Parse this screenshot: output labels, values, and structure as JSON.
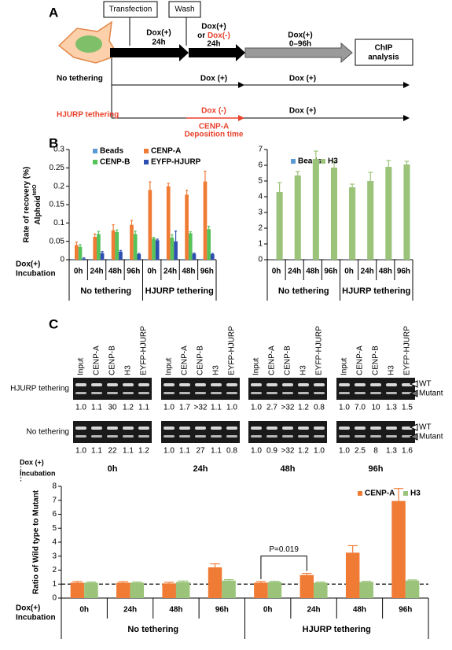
{
  "panel_labels": [
    "A",
    "B",
    "C"
  ],
  "panel_a": {
    "transfection": "Transfection",
    "wash": "Wash",
    "step1": [
      "Dox(+)",
      "24h"
    ],
    "step2": [
      "Dox(+)",
      "or ",
      "Dox(-)",
      "24h"
    ],
    "step3": [
      "Dox(+)",
      "0–96h"
    ],
    "chip": [
      "ChIP",
      "analysis"
    ],
    "no_tethering": {
      "label": "No tethering",
      "dox1": "Dox (+)",
      "dox2": "Dox (+)"
    },
    "hjurp_tethering": {
      "label": "HJURP tethering",
      "dox1": "Dox (-)",
      "dox2": "Dox (+)",
      "note": [
        "CENP-A",
        "Deposition time"
      ]
    }
  },
  "chart_data": [
    {
      "type": "bar",
      "y_label": "Rate of recovery (%)",
      "y_label_2": "Alphoid",
      "y_label_2_sup": "tetO",
      "ylim": [
        0,
        0.3
      ],
      "yticks": [
        0,
        0.05,
        0.1,
        0.15,
        0.2,
        0.25,
        0.3
      ],
      "categories": [
        "0h",
        "24h",
        "48h",
        "96h",
        "0h",
        "24h",
        "48h",
        "96h"
      ],
      "group_labels": [
        "No tethering",
        "HJURP tethering"
      ],
      "row_label": [
        "Dox(+)",
        "Incubation"
      ],
      "series": [
        {
          "name": "Beads",
          "color": "#5b9bd5",
          "values": [
            0.002,
            0.002,
            0.002,
            0.002,
            0.002,
            0.002,
            0.002,
            0.002
          ]
        },
        {
          "name": "CENP-A",
          "color": "#f07b35",
          "values": [
            0.04,
            0.062,
            0.08,
            0.095,
            0.19,
            0.2,
            0.177,
            0.213
          ],
          "errors": [
            0.008,
            0.008,
            0.015,
            0.012,
            0.022,
            0.008,
            0.012,
            0.028
          ]
        },
        {
          "name": "CENP-B",
          "color": "#55c25a",
          "values": [
            0.035,
            0.07,
            0.075,
            0.07,
            0.058,
            0.06,
            0.072,
            0.083
          ],
          "errors": [
            0.006,
            0.007,
            0.006,
            0.008,
            0.003,
            0.008,
            0.004,
            0.008
          ]
        },
        {
          "name": "EYFP-HJURP",
          "color": "#2f4fb0",
          "values": [
            0.003,
            0.018,
            0.022,
            0.015,
            0.053,
            0.05,
            0.016,
            0.015
          ],
          "errors": [
            0.002,
            0.004,
            0.003,
            0.002,
            0.003,
            0.028,
            0.002,
            0.002
          ]
        }
      ]
    },
    {
      "type": "bar",
      "ylim": [
        0,
        7
      ],
      "yticks": [
        0,
        1,
        2,
        3,
        4,
        5,
        6,
        7
      ],
      "categories": [
        "0h",
        "24h",
        "48h",
        "96h",
        "0h",
        "24h",
        "48h",
        "96h"
      ],
      "group_labels": [
        "No tethering",
        "HJURP tethering"
      ],
      "series": [
        {
          "name": "Beads",
          "color": "#5b9bd5",
          "values": [
            0.01,
            0.01,
            0.01,
            0.01,
            0.01,
            0.01,
            0.01,
            0.01
          ]
        },
        {
          "name": "H3",
          "color": "#9bc47a",
          "values": [
            4.3,
            5.35,
            6.4,
            5.85,
            4.6,
            5.0,
            5.9,
            6.05
          ],
          "errors": [
            0.6,
            0.25,
            0.5,
            0.4,
            0.2,
            0.55,
            0.4,
            0.2
          ]
        }
      ]
    },
    {
      "type": "bar",
      "y_label": "Ratio of Wild type to Mutant",
      "ylim": [
        0,
        8
      ],
      "yticks": [
        0,
        1,
        2,
        3,
        4,
        5,
        6,
        7,
        8
      ],
      "reference_line": 1,
      "annotation": "P=0.019",
      "categories": [
        "0h",
        "24h",
        "48h",
        "96h",
        "0h",
        "24h",
        "48h",
        "96h"
      ],
      "group_labels": [
        "No tethering",
        "HJURP tethering"
      ],
      "row_label": [
        "Dox(+)",
        "Incubation"
      ],
      "series": [
        {
          "name": "CENP-A",
          "color": "#f07b35",
          "values": [
            1.1,
            1.1,
            1.05,
            2.2,
            1.1,
            1.65,
            3.25,
            6.95
          ],
          "errors": [
            0.08,
            0.07,
            0.08,
            0.25,
            0.08,
            0.12,
            0.5,
            0.9
          ]
        },
        {
          "name": "H3",
          "color": "#9bc47a",
          "values": [
            1.1,
            1.1,
            1.15,
            1.25,
            1.15,
            1.1,
            1.15,
            1.25
          ],
          "errors": [
            0.05,
            0.05,
            0.07,
            0.07,
            0.05,
            0.05,
            0.05,
            0.05
          ]
        }
      ]
    }
  ],
  "gels": {
    "lane_labels": [
      "Input",
      "CENP-A",
      "CENP-B",
      "H3",
      "EYFP-HJURP"
    ],
    "band_labels": [
      "WT",
      "Mutant"
    ],
    "rows": [
      {
        "label": "HJURP tethering",
        "values": [
          [
            "1.0",
            "1.1",
            "30",
            "1.2",
            "1.1"
          ],
          [
            "1.0",
            "1.7",
            ">32",
            "1.1",
            "1.0"
          ],
          [
            "1.0",
            "2.7",
            ">32",
            "1.2",
            "0.8"
          ],
          [
            "1.0",
            "7.0",
            "10",
            "1.3",
            "1.5"
          ]
        ]
      },
      {
        "label": "No tethering",
        "values": [
          [
            "1.0",
            "1.1",
            "22",
            "1.1",
            "1.2"
          ],
          [
            "1.0",
            "1.1",
            "27",
            "1.1",
            "0.8"
          ],
          [
            "1.0",
            "0.9",
            ">32",
            "1.2",
            "1.0"
          ],
          [
            "1.0",
            "2.5",
            "8",
            "1.3",
            "1.6"
          ]
        ]
      }
    ],
    "row_label": [
      "Dox (+)",
      ":",
      "Incubation",
      ":"
    ],
    "times": [
      "0h",
      "24h",
      "48h",
      "96h"
    ]
  }
}
